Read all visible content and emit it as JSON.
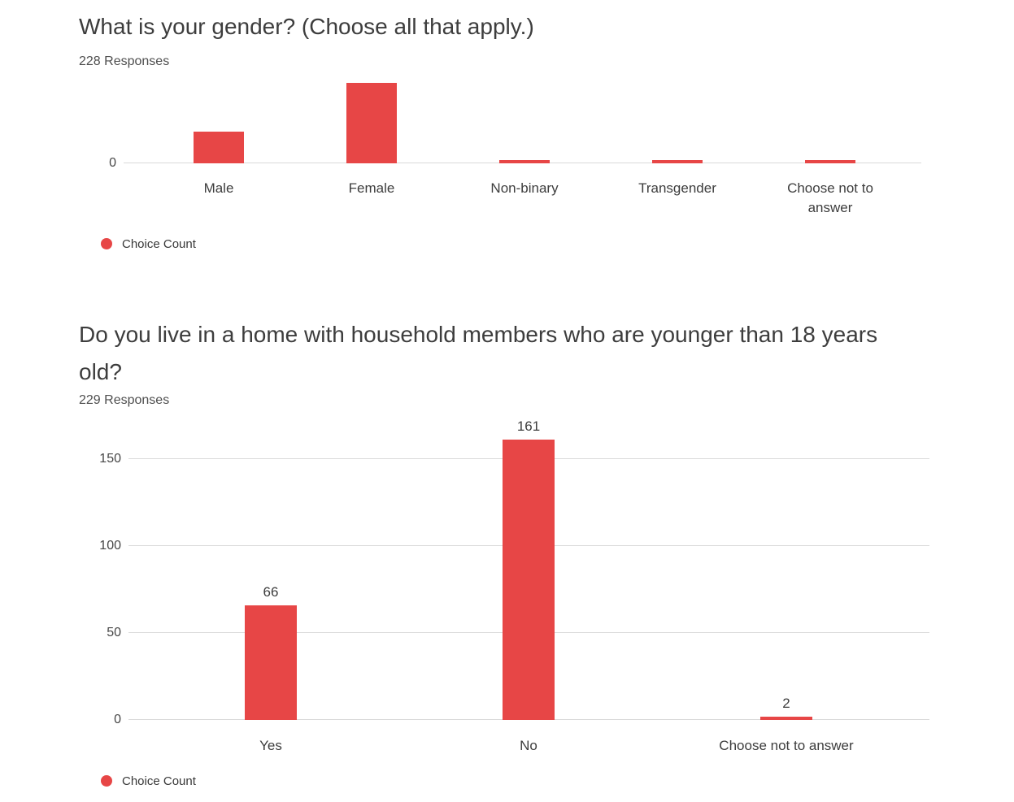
{
  "colors": {
    "bar_red": "#e74646",
    "gridline_gray": "#dadada",
    "title_text": "#3d3d3d",
    "background": "#ffffff"
  },
  "chart_data": [
    {
      "type": "bar",
      "title": "What is your gender? (Choose all that apply.)",
      "responses_label": "228 Responses",
      "legend_label": "Choice Count",
      "series_name": "Choice Count",
      "categories": [
        "Male",
        "Female",
        "Non-binary",
        "Transgender",
        "Choose not to answer"
      ],
      "values": [
        63,
        160,
        2,
        2,
        2
      ],
      "values_estimated": true,
      "show_data_labels": false,
      "data_labels": [],
      "xlabel": "",
      "ylabel": "",
      "ylim": [
        0,
        162
      ],
      "grid": false,
      "y_ticks": [
        {
          "value": 0,
          "label": "0"
        }
      ],
      "bar_color": "#e74646",
      "legend_position": "bottom-left"
    },
    {
      "type": "bar",
      "title": "Do you live in a home with household members who are younger than 18 years old?",
      "responses_label": "229 Responses",
      "legend_label": "Choice Count",
      "series_name": "Choice Count",
      "categories": [
        "Yes",
        "No",
        "Choose not to answer"
      ],
      "values": [
        66,
        161,
        2
      ],
      "values_estimated": false,
      "show_data_labels": true,
      "data_labels": [
        "66",
        "161",
        "2"
      ],
      "xlabel": "",
      "ylabel": "",
      "ylim": [
        0,
        171
      ],
      "grid": true,
      "y_ticks": [
        {
          "value": 0,
          "label": "0"
        },
        {
          "value": 50,
          "label": "50"
        },
        {
          "value": 100,
          "label": "100"
        },
        {
          "value": 150,
          "label": "150"
        }
      ],
      "bar_color": "#e74646",
      "legend_position": "bottom-left"
    }
  ]
}
